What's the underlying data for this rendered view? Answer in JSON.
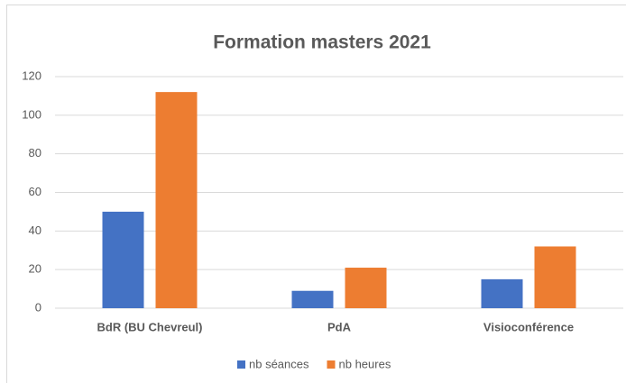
{
  "chart_data": {
    "type": "bar",
    "title": "Formation masters 2021",
    "categories": [
      "BdR (BU Chevreul)",
      "PdA",
      "Visioconférence"
    ],
    "series": [
      {
        "name": "nb séances",
        "color": "#4472c4",
        "values": [
          50,
          9,
          15
        ]
      },
      {
        "name": "nb heures",
        "color": "#ed7d31",
        "values": [
          112,
          21,
          32
        ]
      }
    ],
    "ylim": [
      0,
      120
    ],
    "yticks": [
      0,
      20,
      40,
      60,
      80,
      100,
      120
    ],
    "grid": true,
    "legend": "bottom"
  }
}
